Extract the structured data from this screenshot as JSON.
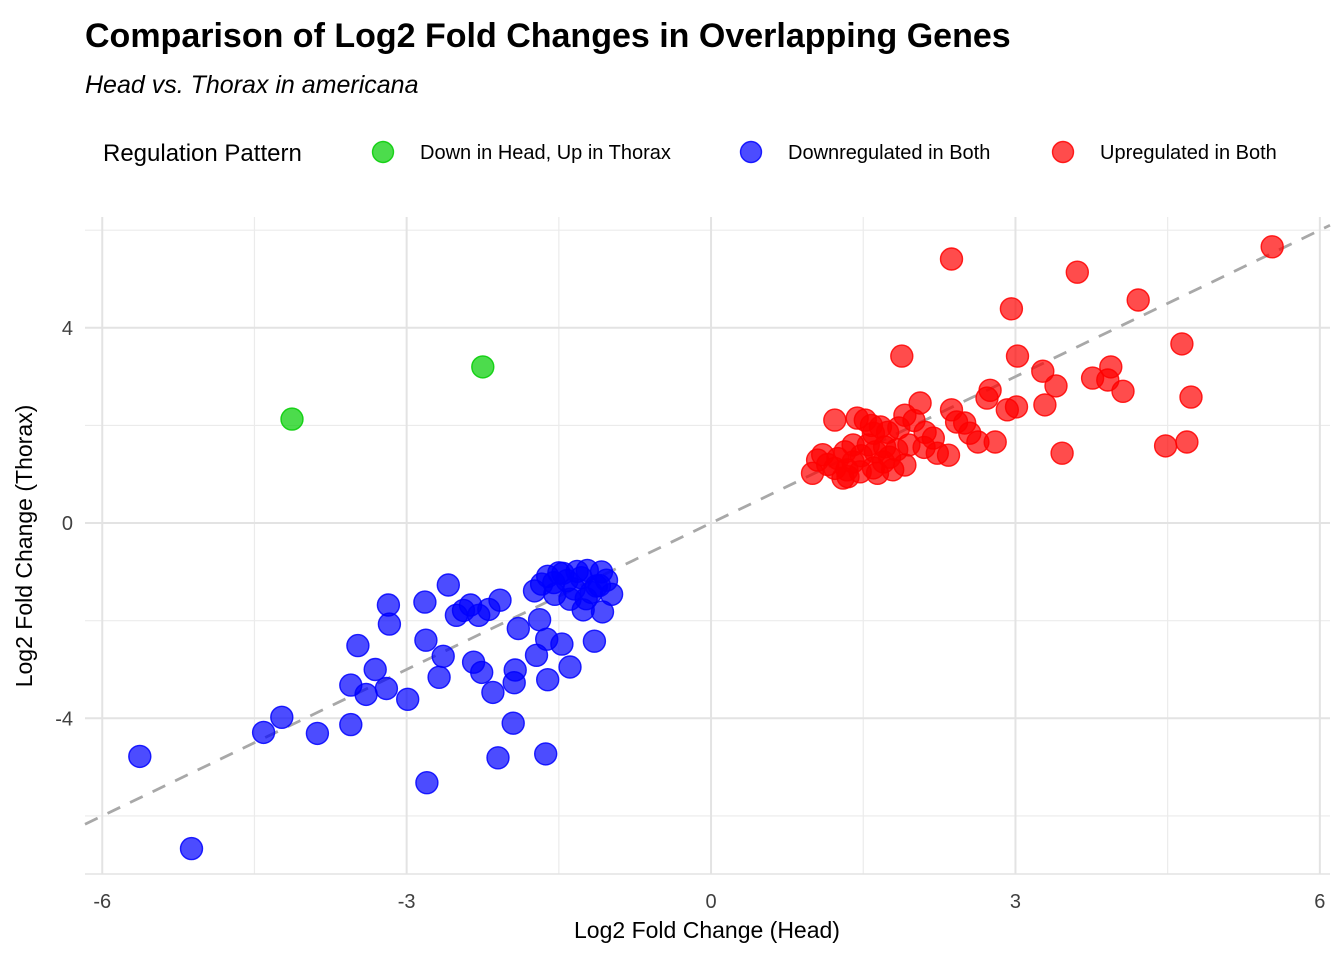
{
  "chart_data": {
    "type": "scatter",
    "title": "Comparison of Log2 Fold Changes in Overlapping Genes",
    "subtitle": "Head vs. Thorax in americana",
    "xlabel": "Log2 Fold Change (Head)",
    "ylabel": "Log2 Fold Change (Thorax)",
    "xlim": [
      -6.17,
      6.1
    ],
    "ylim": [
      -7.19,
      6.27
    ],
    "x_ticks": [
      -6,
      -3,
      0,
      3,
      6
    ],
    "y_ticks": [
      -4,
      0,
      4
    ],
    "x_minor_ticks": [
      -4.5,
      -1.5,
      1.5,
      4.5
    ],
    "y_minor_ticks": [
      -6,
      -2,
      2,
      6
    ],
    "grid": "on",
    "colors": {
      "major_grid": "#E3E3E3",
      "minor_grid": "#EBEBEB",
      "identity_line": "#A8A8A8",
      "tick_text": "#404040"
    },
    "identity_line": {
      "type": "dashed",
      "equation": "y = x"
    },
    "legend": {
      "title": "Regulation Pattern",
      "position": "top",
      "entries": [
        {
          "label": "Down in Head, Up in Thorax",
          "color": "#00CD00"
        },
        {
          "label": "Downregulated in Both",
          "color": "#0000FF"
        },
        {
          "label": "Upregulated in Both",
          "color": "#FF0000"
        }
      ]
    },
    "series": [
      {
        "name": "Down in Head, Up in Thorax",
        "color": "#00CD00",
        "points": [
          [
            -4.13,
            2.13
          ],
          [
            -2.25,
            3.2
          ]
        ]
      },
      {
        "name": "Downregulated in Both",
        "color": "#0000FF",
        "points": [
          [
            -5.63,
            -4.78
          ],
          [
            -5.12,
            -6.67
          ],
          [
            -4.41,
            -4.29
          ],
          [
            -4.23,
            -3.98
          ],
          [
            -3.88,
            -4.31
          ],
          [
            -3.55,
            -3.32
          ],
          [
            -3.55,
            -4.13
          ],
          [
            -3.48,
            -2.51
          ],
          [
            -3.4,
            -3.51
          ],
          [
            -3.31,
            -3.0
          ],
          [
            -3.2,
            -3.39
          ],
          [
            -3.18,
            -1.68
          ],
          [
            -3.17,
            -2.07
          ],
          [
            -2.99,
            -3.61
          ],
          [
            -2.82,
            -1.62
          ],
          [
            -2.81,
            -2.4
          ],
          [
            -2.8,
            -5.32
          ],
          [
            -2.68,
            -3.16
          ],
          [
            -2.64,
            -2.73
          ],
          [
            -2.59,
            -1.27
          ],
          [
            -2.51,
            -1.89
          ],
          [
            -2.44,
            -1.79
          ],
          [
            -2.37,
            -1.68
          ],
          [
            -2.34,
            -2.85
          ],
          [
            -2.29,
            -1.89
          ],
          [
            -2.26,
            -3.06
          ],
          [
            -2.19,
            -1.77
          ],
          [
            -2.15,
            -3.47
          ],
          [
            -2.1,
            -4.81
          ],
          [
            -2.08,
            -1.58
          ],
          [
            -1.95,
            -4.1
          ],
          [
            -1.94,
            -3.27
          ],
          [
            -1.93,
            -3.01
          ],
          [
            -1.9,
            -2.16
          ],
          [
            -1.74,
            -1.39
          ],
          [
            -1.72,
            -2.71
          ],
          [
            -1.69,
            -1.98
          ],
          [
            -1.67,
            -1.25
          ],
          [
            -1.63,
            -4.73
          ],
          [
            -1.62,
            -2.38
          ],
          [
            -1.61,
            -1.09
          ],
          [
            -1.61,
            -3.21
          ],
          [
            -1.55,
            -1.22
          ],
          [
            -1.54,
            -1.46
          ],
          [
            -1.5,
            -1.02
          ],
          [
            -1.47,
            -2.48
          ],
          [
            -1.46,
            -1.03
          ],
          [
            -1.42,
            -1.18
          ],
          [
            -1.39,
            -1.56
          ],
          [
            -1.39,
            -2.95
          ],
          [
            -1.35,
            -1.35
          ],
          [
            -1.32,
            -0.99
          ],
          [
            -1.28,
            -1.12
          ],
          [
            -1.26,
            -1.78
          ],
          [
            -1.23,
            -1.55
          ],
          [
            -1.22,
            -0.97
          ],
          [
            -1.18,
            -1.42
          ],
          [
            -1.15,
            -2.42
          ],
          [
            -1.13,
            -1.29
          ],
          [
            -1.1,
            -1.28
          ],
          [
            -1.08,
            -1.0
          ],
          [
            -1.07,
            -1.82
          ],
          [
            -1.03,
            -1.17
          ],
          [
            -0.98,
            -1.46
          ]
        ]
      },
      {
        "name": "Upregulated in Both",
        "color": "#FF0000",
        "points": [
          [
            1.0,
            1.02
          ],
          [
            1.05,
            1.29
          ],
          [
            1.1,
            1.4
          ],
          [
            1.15,
            1.2
          ],
          [
            1.22,
            1.12
          ],
          [
            1.22,
            2.11
          ],
          [
            1.25,
            1.32
          ],
          [
            1.3,
            0.92
          ],
          [
            1.32,
            1.46
          ],
          [
            1.34,
            1.09
          ],
          [
            1.35,
            0.95
          ],
          [
            1.4,
            1.25
          ],
          [
            1.4,
            1.6
          ],
          [
            1.44,
            2.15
          ],
          [
            1.47,
            1.05
          ],
          [
            1.48,
            1.38
          ],
          [
            1.52,
            2.11
          ],
          [
            1.55,
            1.6
          ],
          [
            1.58,
            2.0
          ],
          [
            1.6,
            1.13
          ],
          [
            1.6,
            1.84
          ],
          [
            1.62,
            1.46
          ],
          [
            1.64,
            1.02
          ],
          [
            1.67,
            1.97
          ],
          [
            1.7,
            1.25
          ],
          [
            1.71,
            1.56
          ],
          [
            1.74,
            1.86
          ],
          [
            1.76,
            1.35
          ],
          [
            1.79,
            1.09
          ],
          [
            1.83,
            1.5
          ],
          [
            1.85,
            1.95
          ],
          [
            1.88,
            3.42
          ],
          [
            1.91,
            1.19
          ],
          [
            1.91,
            2.21
          ],
          [
            1.95,
            1.6
          ],
          [
            2.0,
            2.1
          ],
          [
            2.06,
            2.46
          ],
          [
            2.1,
            1.55
          ],
          [
            2.11,
            1.86
          ],
          [
            2.19,
            1.74
          ],
          [
            2.23,
            1.43
          ],
          [
            2.34,
            1.39
          ],
          [
            2.37,
            2.32
          ],
          [
            2.37,
            5.41
          ],
          [
            2.42,
            2.07
          ],
          [
            2.5,
            2.05
          ],
          [
            2.55,
            1.84
          ],
          [
            2.63,
            1.66
          ],
          [
            2.72,
            2.56
          ],
          [
            2.75,
            2.72
          ],
          [
            2.8,
            1.66
          ],
          [
            2.92,
            2.32
          ],
          [
            2.96,
            4.39
          ],
          [
            3.01,
            2.38
          ],
          [
            3.02,
            3.42
          ],
          [
            3.27,
            3.11
          ],
          [
            3.29,
            2.42
          ],
          [
            3.4,
            2.81
          ],
          [
            3.46,
            1.43
          ],
          [
            3.61,
            5.14
          ],
          [
            3.76,
            2.97
          ],
          [
            3.91,
            2.93
          ],
          [
            3.94,
            3.2
          ],
          [
            4.06,
            2.7
          ],
          [
            4.21,
            4.57
          ],
          [
            4.48,
            1.58
          ],
          [
            4.64,
            3.67
          ],
          [
            4.69,
            1.66
          ],
          [
            4.73,
            2.58
          ],
          [
            5.53,
            5.66
          ]
        ]
      }
    ]
  }
}
